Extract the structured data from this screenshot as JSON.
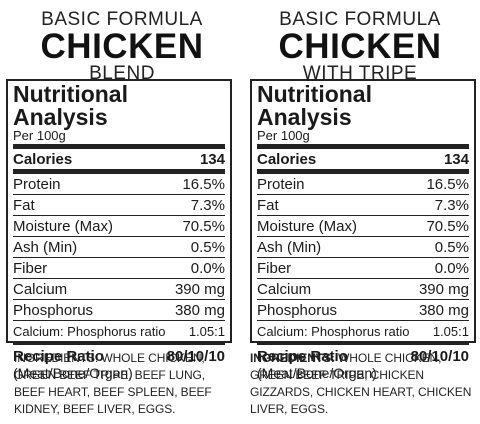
{
  "products": [
    {
      "subtitle": "BASIC FORMULA",
      "title": "CHICKEN",
      "variant": "BLEND",
      "panel_title": "Nutritional Analysis",
      "per": "Per 100g",
      "calories_label": "Calories",
      "calories_value": "134",
      "rows": [
        {
          "label": "Protein",
          "value": "16.5%"
        },
        {
          "label": "Fat",
          "value": "7.3%"
        },
        {
          "label": "Moisture (Max)",
          "value": "70.5%"
        },
        {
          "label": "Ash (Min)",
          "value": "0.5%"
        },
        {
          "label": "Fiber",
          "value": "0.0%"
        },
        {
          "label": "Calcium",
          "value": "390 mg"
        },
        {
          "label": "Phosphorus",
          "value": "380 mg"
        }
      ],
      "ca_p_label": "Calcium: Phosphorus ratio",
      "ca_p_value": "1.05:1",
      "recipe_label": "Recipe Ratio",
      "recipe_value": "80/10/10",
      "recipe_sub": "(Meat/Bone/Organ)",
      "ingredients_label": "INGREDIENTS:",
      "ingredients_text": "WHOLE CHICKEN, GREEN BEEF TRIPE, BEEF LUNG, BEEF HEART, BEEF SPLEEN, BEEF KIDNEY, BEEF LIVER, EGGS."
    },
    {
      "subtitle": "BASIC FORMULA",
      "title": "CHICKEN",
      "variant": "WITH TRIPE",
      "panel_title": "Nutritional Analysis",
      "per": "Per 100g",
      "calories_label": "Calories",
      "calories_value": "134",
      "rows": [
        {
          "label": "Protein",
          "value": "16.5%"
        },
        {
          "label": "Fat",
          "value": "7.3%"
        },
        {
          "label": "Moisture (Max)",
          "value": "70.5%"
        },
        {
          "label": "Ash (Min)",
          "value": "0.5%"
        },
        {
          "label": "Fiber",
          "value": "0.0%"
        },
        {
          "label": "Calcium",
          "value": "390 mg"
        },
        {
          "label": "Phosphorus",
          "value": "380 mg"
        }
      ],
      "ca_p_label": "Calcium: Phosphorus ratio",
      "ca_p_value": "1.05:1",
      "recipe_label": "Recipe Ratio",
      "recipe_value": "80/10/10",
      "recipe_sub": "(Meat/Bone/Organ)",
      "ingredients_label": "INGREDIENTS:",
      "ingredients_text": "WHOLE CHICKEN, GREEN BEEF TRIPE, CHICKEN GIZZARDS, CHICKEN HEART, CHICKEN LIVER, EGGS."
    }
  ]
}
